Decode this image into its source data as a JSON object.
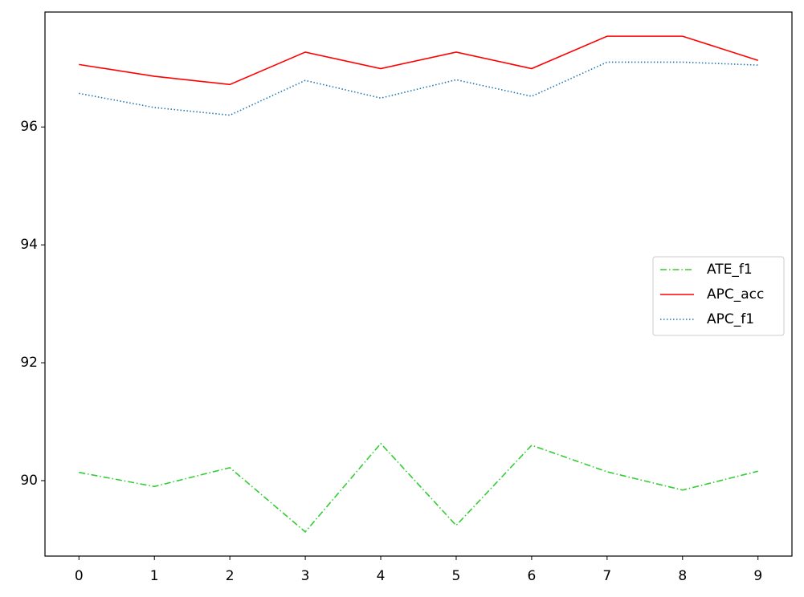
{
  "chart_data": {
    "type": "line",
    "x": [
      0,
      1,
      2,
      3,
      4,
      5,
      6,
      7,
      8,
      9
    ],
    "series": [
      {
        "name": "ATE_f1",
        "color": "#32cd32",
        "dash": "dashdot",
        "values": [
          90.14,
          89.9,
          90.22,
          89.13,
          90.63,
          89.24,
          90.6,
          90.15,
          89.84,
          90.16
        ]
      },
      {
        "name": "APC_acc",
        "color": "#ff0000",
        "dash": "solid",
        "values": [
          97.06,
          96.86,
          96.72,
          97.27,
          96.99,
          97.27,
          96.99,
          97.54,
          97.54,
          97.13
        ]
      },
      {
        "name": "APC_f1",
        "color": "#1f77b4",
        "dash": "dotted",
        "values": [
          96.57,
          96.33,
          96.2,
          96.79,
          96.49,
          96.8,
          96.52,
          97.1,
          97.1,
          97.05
        ]
      }
    ],
    "xlim": [
      -0.45,
      9.45
    ],
    "xticks": [
      0,
      1,
      2,
      3,
      4,
      5,
      6,
      7,
      8,
      9
    ],
    "ylim": [
      88.72,
      97.95
    ],
    "yticks": [
      90,
      92,
      94,
      96
    ],
    "grid": false,
    "legend": "center right"
  }
}
